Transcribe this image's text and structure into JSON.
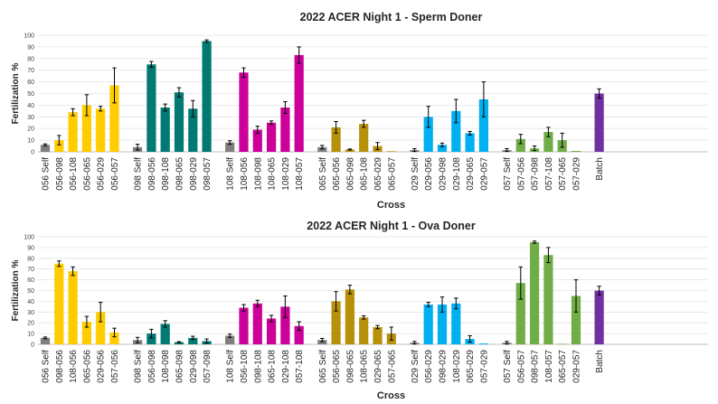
{
  "colors": {
    "056": "#ffcc00",
    "098": "#007a73",
    "108": "#cc0099",
    "065": "#b8910a",
    "029": "#00b0f0",
    "057": "#70ad47",
    "self": "#7f7f7f",
    "batch": "#7030a0"
  },
  "chart_data": [
    {
      "type": "bar",
      "title": "2022 ACER Night 1 - Sperm Doner",
      "xlabel": "Cross",
      "ylabel": "Fertilization %",
      "ylim": [
        0,
        100
      ],
      "yticks": [
        0,
        10,
        20,
        30,
        40,
        50,
        60,
        70,
        80,
        90,
        100
      ],
      "grid": true,
      "legend": "none",
      "groups": [
        {
          "color": "056",
          "bars": [
            {
              "label": "056 Self",
              "value": 6,
              "err": 0.8,
              "color": "self"
            },
            {
              "label": "056-098",
              "value": 10,
              "err": 4
            },
            {
              "label": "056-108",
              "value": 34,
              "err": 3
            },
            {
              "label": "056-065",
              "value": 40,
              "err": 9
            },
            {
              "label": "056-029",
              "value": 37,
              "err": 2
            },
            {
              "label": "056-057",
              "value": 57,
              "err": 15
            }
          ]
        },
        {
          "color": "098",
          "bars": [
            {
              "label": "098 Self",
              "value": 4,
              "err": 2.5,
              "color": "self"
            },
            {
              "label": "098-056",
              "value": 75,
              "err": 2.5
            },
            {
              "label": "098-108",
              "value": 38,
              "err": 3
            },
            {
              "label": "098-065",
              "value": 51,
              "err": 4
            },
            {
              "label": "098-029",
              "value": 37,
              "err": 7
            },
            {
              "label": "098-057",
              "value": 95,
              "err": 1
            }
          ]
        },
        {
          "color": "108",
          "bars": [
            {
              "label": "108 Self",
              "value": 8,
              "err": 1.5,
              "color": "self"
            },
            {
              "label": "108-056",
              "value": 68,
              "err": 4
            },
            {
              "label": "108-098",
              "value": 19,
              "err": 3
            },
            {
              "label": "108-065",
              "value": 25,
              "err": 1.5
            },
            {
              "label": "108-029",
              "value": 38,
              "err": 5
            },
            {
              "label": "108-057",
              "value": 83,
              "err": 7
            }
          ]
        },
        {
          "color": "065",
          "bars": [
            {
              "label": "065 Self",
              "value": 4,
              "err": 1.5,
              "color": "self"
            },
            {
              "label": "065-056",
              "value": 21,
              "err": 5
            },
            {
              "label": "065-098",
              "value": 2,
              "err": 0.5
            },
            {
              "label": "065-108",
              "value": 24,
              "err": 3
            },
            {
              "label": "065-029",
              "value": 5,
              "err": 3
            },
            {
              "label": "065-057",
              "value": 0.5,
              "err": 0
            }
          ]
        },
        {
          "color": "029",
          "bars": [
            {
              "label": "029 Self",
              "value": 1.5,
              "err": 1.2,
              "color": "self"
            },
            {
              "label": "029-056",
              "value": 30,
              "err": 9
            },
            {
              "label": "029-098",
              "value": 6,
              "err": 1.5
            },
            {
              "label": "029-108",
              "value": 35,
              "err": 10
            },
            {
              "label": "029-065",
              "value": 16,
              "err": 1.5
            },
            {
              "label": "029-057",
              "value": 45,
              "err": 15
            }
          ]
        },
        {
          "color": "057",
          "bars": [
            {
              "label": "057 Self",
              "value": 1.5,
              "err": 1.2,
              "color": "self"
            },
            {
              "label": "057-056",
              "value": 11,
              "err": 4
            },
            {
              "label": "057-098",
              "value": 3,
              "err": 2
            },
            {
              "label": "057-108",
              "value": 17,
              "err": 4
            },
            {
              "label": "057-065",
              "value": 10,
              "err": 6
            },
            {
              "label": "057-029",
              "value": 0.8,
              "err": 0
            }
          ]
        },
        {
          "color": "batch",
          "bars": [
            {
              "label": "Batch",
              "value": 50,
              "err": 4
            }
          ]
        }
      ]
    },
    {
      "type": "bar",
      "title": "2022 ACER Night 1 - Ova Doner",
      "xlabel": "Cross",
      "ylabel": "Fertilization %",
      "ylim": [
        0,
        100
      ],
      "yticks": [
        0,
        10,
        20,
        30,
        40,
        50,
        60,
        70,
        80,
        90,
        100
      ],
      "grid": true,
      "legend": "none",
      "groups": [
        {
          "color": "056",
          "bars": [
            {
              "label": "056 Self",
              "value": 6,
              "err": 0.8,
              "color": "self"
            },
            {
              "label": "098-056",
              "value": 75,
              "err": 2.5
            },
            {
              "label": "108-056",
              "value": 68,
              "err": 4
            },
            {
              "label": "065-056",
              "value": 21,
              "err": 5
            },
            {
              "label": "029-056",
              "value": 30,
              "err": 9
            },
            {
              "label": "057-056",
              "value": 11,
              "err": 4
            }
          ]
        },
        {
          "color": "098",
          "bars": [
            {
              "label": "098 Self",
              "value": 4,
              "err": 2.5,
              "color": "self"
            },
            {
              "label": "056-098",
              "value": 10,
              "err": 4
            },
            {
              "label": "108-098",
              "value": 19,
              "err": 3
            },
            {
              "label": "065-098",
              "value": 2,
              "err": 0.5
            },
            {
              "label": "029-098",
              "value": 6,
              "err": 1.5
            },
            {
              "label": "057-098",
              "value": 3,
              "err": 2
            }
          ]
        },
        {
          "color": "108",
          "bars": [
            {
              "label": "108 Self",
              "value": 8,
              "err": 1.5,
              "color": "self"
            },
            {
              "label": "056-108",
              "value": 34,
              "err": 3
            },
            {
              "label": "098-108",
              "value": 38,
              "err": 3
            },
            {
              "label": "065-108",
              "value": 24,
              "err": 3
            },
            {
              "label": "029-108",
              "value": 35,
              "err": 10
            },
            {
              "label": "057-108",
              "value": 17,
              "err": 4
            }
          ]
        },
        {
          "color": "065",
          "bars": [
            {
              "label": "065 Self",
              "value": 4,
              "err": 1.5,
              "color": "self"
            },
            {
              "label": "056-065",
              "value": 40,
              "err": 9
            },
            {
              "label": "098-065",
              "value": 51,
              "err": 4
            },
            {
              "label": "108-065",
              "value": 25,
              "err": 1.5
            },
            {
              "label": "029-065",
              "value": 16,
              "err": 1.5
            },
            {
              "label": "057-065",
              "value": 10,
              "err": 6
            }
          ]
        },
        {
          "color": "029",
          "bars": [
            {
              "label": "029 Self",
              "value": 1.5,
              "err": 1.2,
              "color": "self"
            },
            {
              "label": "056-029",
              "value": 37,
              "err": 2
            },
            {
              "label": "098-029",
              "value": 37,
              "err": 7
            },
            {
              "label": "108-029",
              "value": 38,
              "err": 5
            },
            {
              "label": "065-029",
              "value": 5,
              "err": 3
            },
            {
              "label": "057-029",
              "value": 0.8,
              "err": 0
            }
          ]
        },
        {
          "color": "057",
          "bars": [
            {
              "label": "057 Self",
              "value": 1.5,
              "err": 1.2,
              "color": "self"
            },
            {
              "label": "056-057",
              "value": 57,
              "err": 15
            },
            {
              "label": "098-057",
              "value": 95,
              "err": 1
            },
            {
              "label": "108-057",
              "value": 83,
              "err": 7
            },
            {
              "label": "065-057",
              "value": 0.5,
              "err": 0
            },
            {
              "label": "029-057",
              "value": 45,
              "err": 15
            }
          ]
        },
        {
          "color": "batch",
          "bars": [
            {
              "label": "Batch",
              "value": 50,
              "err": 4
            }
          ]
        }
      ]
    }
  ]
}
